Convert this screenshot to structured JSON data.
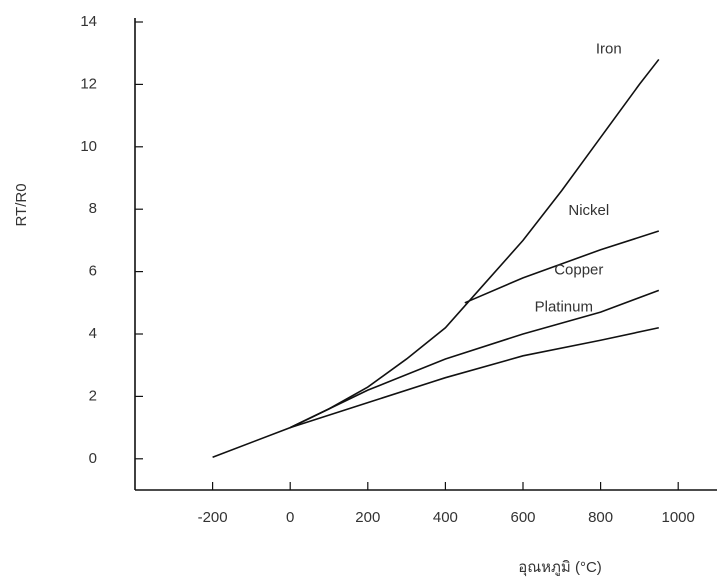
{
  "chart_data": {
    "type": "line",
    "x_label": "อุณหภูมิ (°C)",
    "y_label": "RT/R0",
    "xlim": [
      -400,
      1100
    ],
    "ylim": [
      -1,
      14
    ],
    "xticks": [
      -200,
      0,
      200,
      400,
      600,
      800,
      1000
    ],
    "yticks": [
      0,
      2,
      4,
      6,
      8,
      10,
      12,
      14
    ],
    "grid": false,
    "series": [
      {
        "name": "Iron",
        "color": "#111111",
        "x": [
          -200,
          0,
          100,
          200,
          300,
          400,
          450,
          500,
          600,
          700,
          800,
          900,
          950
        ],
        "values": [
          0.05,
          1,
          1.6,
          2.3,
          3.2,
          4.2,
          4.9,
          5.6,
          7.0,
          8.6,
          10.3,
          12.0,
          12.8
        ]
      },
      {
        "name": "Nickel",
        "color": "#111111",
        "x": [
          450,
          600,
          800,
          950
        ],
        "values": [
          5.0,
          5.8,
          6.7,
          7.3
        ]
      },
      {
        "name": "Copper",
        "color": "#111111",
        "x": [
          0,
          200,
          400,
          600,
          800,
          950
        ],
        "values": [
          1,
          2.2,
          3.2,
          4.0,
          4.7,
          5.4
        ]
      },
      {
        "name": "Platinum",
        "color": "#111111",
        "x": [
          0,
          200,
          400,
          600,
          800,
          950
        ],
        "values": [
          1,
          1.8,
          2.6,
          3.3,
          3.8,
          4.2
        ]
      }
    ]
  }
}
